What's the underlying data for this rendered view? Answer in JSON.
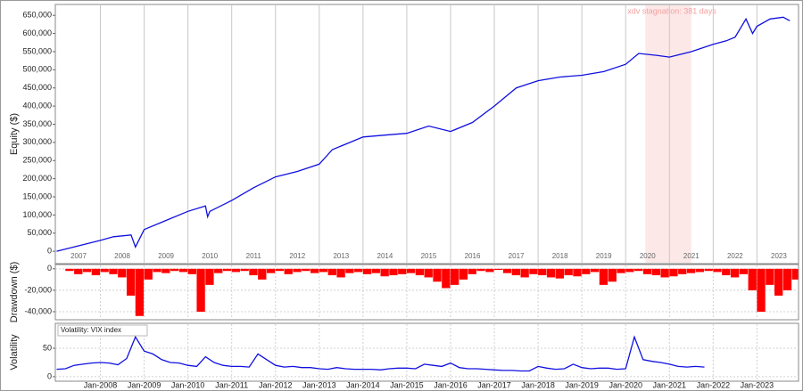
{
  "chart_data": [
    {
      "type": "line",
      "ylabel": "Equity ($)",
      "color": "#1010e0",
      "xlim": [
        2006.97,
        2023.95
      ],
      "ylim": [
        -34000,
        680000
      ],
      "yticks": [
        0,
        {
          "value": 50000,
          "label": "50,000"
        },
        {
          "value": 100000,
          "label": "100,000"
        },
        {
          "value": 150000,
          "label": "150,000"
        },
        {
          "value": 200000,
          "label": "200,000"
        },
        {
          "value": 250000,
          "label": "250,000"
        },
        {
          "value": 300000,
          "label": "300,000"
        },
        {
          "value": 350000,
          "label": "350,000"
        },
        {
          "value": 400000,
          "label": "400,000"
        },
        {
          "value": 450000,
          "label": "450,000"
        },
        {
          "value": 500000,
          "label": "500,000"
        },
        {
          "value": 550000,
          "label": "550,000"
        },
        {
          "value": 600000,
          "label": "600,000"
        },
        {
          "value": 650000,
          "label": "650,000"
        }
      ],
      "xticks": [
        {
          "value": 2007.5,
          "label": "2007"
        },
        {
          "value": 2008.5,
          "label": "2008"
        },
        {
          "value": 2009.5,
          "label": "2009"
        },
        {
          "value": 2010.5,
          "label": "2010"
        },
        {
          "value": 2011.5,
          "label": "2011"
        },
        {
          "value": 2012.5,
          "label": "2012"
        },
        {
          "value": 2013.5,
          "label": "2013"
        },
        {
          "value": 2014.5,
          "label": "2014"
        },
        {
          "value": 2015.5,
          "label": "2015"
        },
        {
          "value": 2016.5,
          "label": "2016"
        },
        {
          "value": 2017.5,
          "label": "2017"
        },
        {
          "value": 2018.5,
          "label": "2018"
        },
        {
          "value": 2019.5,
          "label": "2019"
        },
        {
          "value": 2020.5,
          "label": "2020"
        },
        {
          "value": 2021.5,
          "label": "2021"
        },
        {
          "value": 2022.5,
          "label": "2022"
        },
        {
          "value": 2023.5,
          "label": "2023"
        }
      ],
      "annotation": {
        "text": "xdv stagnation: 381 days",
        "x0": 2020.45,
        "x1": 2021.5
      },
      "x": [
        2007.0,
        2007.5,
        2008.0,
        2008.3,
        2008.7,
        2008.8,
        2009.0,
        2009.5,
        2010.0,
        2010.4,
        2010.45,
        2010.5,
        2011.0,
        2011.5,
        2012.0,
        2012.5,
        2013.0,
        2013.3,
        2013.7,
        2014.0,
        2014.5,
        2015.0,
        2015.5,
        2016.0,
        2016.5,
        2017.0,
        2017.5,
        2018.0,
        2018.5,
        2019.0,
        2019.5,
        2020.0,
        2020.3,
        2020.7,
        2021.0,
        2021.5,
        2022.0,
        2022.3,
        2022.5,
        2022.75,
        2022.9,
        2023.0,
        2023.3,
        2023.6,
        2023.75
      ],
      "values": [
        0,
        15000,
        30000,
        40000,
        45000,
        12000,
        60000,
        85000,
        110000,
        125000,
        95000,
        110000,
        140000,
        175000,
        205000,
        220000,
        240000,
        280000,
        300000,
        315000,
        320000,
        325000,
        345000,
        330000,
        355000,
        400000,
        450000,
        470000,
        480000,
        485000,
        495000,
        515000,
        545000,
        540000,
        535000,
        550000,
        570000,
        580000,
        590000,
        640000,
        600000,
        620000,
        640000,
        645000,
        635000
      ]
    },
    {
      "type": "bar",
      "ylabel": "Drawdown ($)",
      "color": "#ff0000",
      "xlim": [
        2006.97,
        2023.95
      ],
      "ylim": [
        -47500,
        4000
      ],
      "yticks": [
        0,
        {
          "value": -20000,
          "label": "-20,000"
        },
        {
          "value": -40000,
          "label": "-40,000"
        }
      ],
      "x": [
        2007.0,
        2007.2,
        2007.4,
        2007.6,
        2007.8,
        2008.0,
        2008.2,
        2008.4,
        2008.6,
        2008.8,
        2009.0,
        2009.2,
        2009.4,
        2009.6,
        2009.8,
        2010.0,
        2010.2,
        2010.4,
        2010.6,
        2010.8,
        2011.0,
        2011.2,
        2011.4,
        2011.6,
        2011.8,
        2012.0,
        2012.2,
        2012.4,
        2012.6,
        2012.8,
        2013.0,
        2013.2,
        2013.4,
        2013.6,
        2013.8,
        2014.0,
        2014.2,
        2014.4,
        2014.6,
        2014.8,
        2015.0,
        2015.2,
        2015.4,
        2015.6,
        2015.8,
        2016.0,
        2016.2,
        2016.4,
        2016.6,
        2016.8,
        2017.0,
        2017.2,
        2017.4,
        2017.6,
        2017.8,
        2018.0,
        2018.2,
        2018.4,
        2018.6,
        2018.8,
        2019.0,
        2019.2,
        2019.4,
        2019.6,
        2019.8,
        2020.0,
        2020.2,
        2020.4,
        2020.6,
        2020.8,
        2021.0,
        2021.2,
        2021.4,
        2021.6,
        2021.8,
        2022.0,
        2022.2,
        2022.4,
        2022.6,
        2022.8,
        2023.0,
        2023.2,
        2023.4,
        2023.6,
        2023.8
      ],
      "values": [
        0,
        -2000,
        -5000,
        -3000,
        -6000,
        -3000,
        -5000,
        -8000,
        -25000,
        -44000,
        -10000,
        -3000,
        -4000,
        -2000,
        -3000,
        -5000,
        -40000,
        -15000,
        -4000,
        -2000,
        -3000,
        -2000,
        -6000,
        -10000,
        -4000,
        -2000,
        -5000,
        -3000,
        -2000,
        -4000,
        -3000,
        -6000,
        -8000,
        -4000,
        -3000,
        -5000,
        -4000,
        -7000,
        -6000,
        -5000,
        -4000,
        -6000,
        -8000,
        -12000,
        -18000,
        -15000,
        -10000,
        -5000,
        -2000,
        -3000,
        -1000,
        -4000,
        -6000,
        -8000,
        -5000,
        -6000,
        -8000,
        -9000,
        -6000,
        -7000,
        -5000,
        -3000,
        -15000,
        -12000,
        -4000,
        -3000,
        -2000,
        -5000,
        -6000,
        -8000,
        -7000,
        -5000,
        -4000,
        -3000,
        -2000,
        -3000,
        -6000,
        -8000,
        -5000,
        -20000,
        -40000,
        -15000,
        -25000,
        -20000,
        -10000
      ]
    },
    {
      "type": "line",
      "ylabel": "Volatility",
      "legend": "Volatility: VIX index",
      "color": "#1010e0",
      "xlim": [
        2006.97,
        2023.95
      ],
      "ylim": [
        -8,
        94
      ],
      "yticks": [
        0,
        50
      ],
      "xticks": [
        {
          "value": 2008,
          "label": "Jan-2008"
        },
        {
          "value": 2009,
          "label": "Jan-2009"
        },
        {
          "value": 2010,
          "label": "Jan-2010"
        },
        {
          "value": 2011,
          "label": "Jan-2011"
        },
        {
          "value": 2012,
          "label": "Jan-2012"
        },
        {
          "value": 2013,
          "label": "Jan-2013"
        },
        {
          "value": 2014,
          "label": "Jan-2014"
        },
        {
          "value": 2015,
          "label": "Jan-2015"
        },
        {
          "value": 2016,
          "label": "Jan-2016"
        },
        {
          "value": 2017,
          "label": "Jan-2017"
        },
        {
          "value": 2018,
          "label": "Jan-2018"
        },
        {
          "value": 2019,
          "label": "Jan-2019"
        },
        {
          "value": 2020,
          "label": "Jan-2020"
        },
        {
          "value": 2021,
          "label": "Jan-2021"
        },
        {
          "value": 2022,
          "label": "Jan-2022"
        },
        {
          "value": 2023,
          "label": "Jan-2023"
        }
      ],
      "x": [
        2007.0,
        2007.2,
        2007.4,
        2007.6,
        2007.8,
        2008.0,
        2008.2,
        2008.4,
        2008.6,
        2008.8,
        2009.0,
        2009.2,
        2009.4,
        2009.6,
        2009.8,
        2010.0,
        2010.2,
        2010.4,
        2010.6,
        2010.8,
        2011.0,
        2011.2,
        2011.4,
        2011.6,
        2011.8,
        2012.0,
        2012.2,
        2012.4,
        2012.6,
        2012.8,
        2013.0,
        2013.2,
        2013.4,
        2013.6,
        2013.8,
        2014.0,
        2014.2,
        2014.4,
        2014.6,
        2014.8,
        2015.0,
        2015.2,
        2015.4,
        2015.6,
        2015.8,
        2016.0,
        2016.2,
        2016.4,
        2016.6,
        2016.8,
        2017.0,
        2017.2,
        2017.4,
        2017.6,
        2017.8,
        2018.0,
        2018.2,
        2018.4,
        2018.6,
        2018.8,
        2019.0,
        2019.2,
        2019.4,
        2019.6,
        2019.8,
        2020.0,
        2020.2,
        2020.4,
        2020.6,
        2020.8,
        2021.0,
        2021.2,
        2021.4,
        2021.6,
        2021.8
      ],
      "values": [
        13,
        14,
        20,
        22,
        24,
        25,
        24,
        21,
        32,
        70,
        45,
        40,
        30,
        25,
        24,
        20,
        18,
        35,
        25,
        20,
        18,
        18,
        17,
        40,
        30,
        20,
        17,
        18,
        16,
        16,
        14,
        13,
        16,
        14,
        13,
        13,
        13,
        12,
        14,
        15,
        15,
        14,
        22,
        20,
        18,
        24,
        16,
        14,
        14,
        13,
        12,
        11,
        11,
        10,
        10,
        18,
        15,
        13,
        14,
        22,
        16,
        14,
        15,
        15,
        13,
        14,
        70,
        30,
        27,
        25,
        22,
        18,
        17,
        18,
        17
      ]
    }
  ]
}
